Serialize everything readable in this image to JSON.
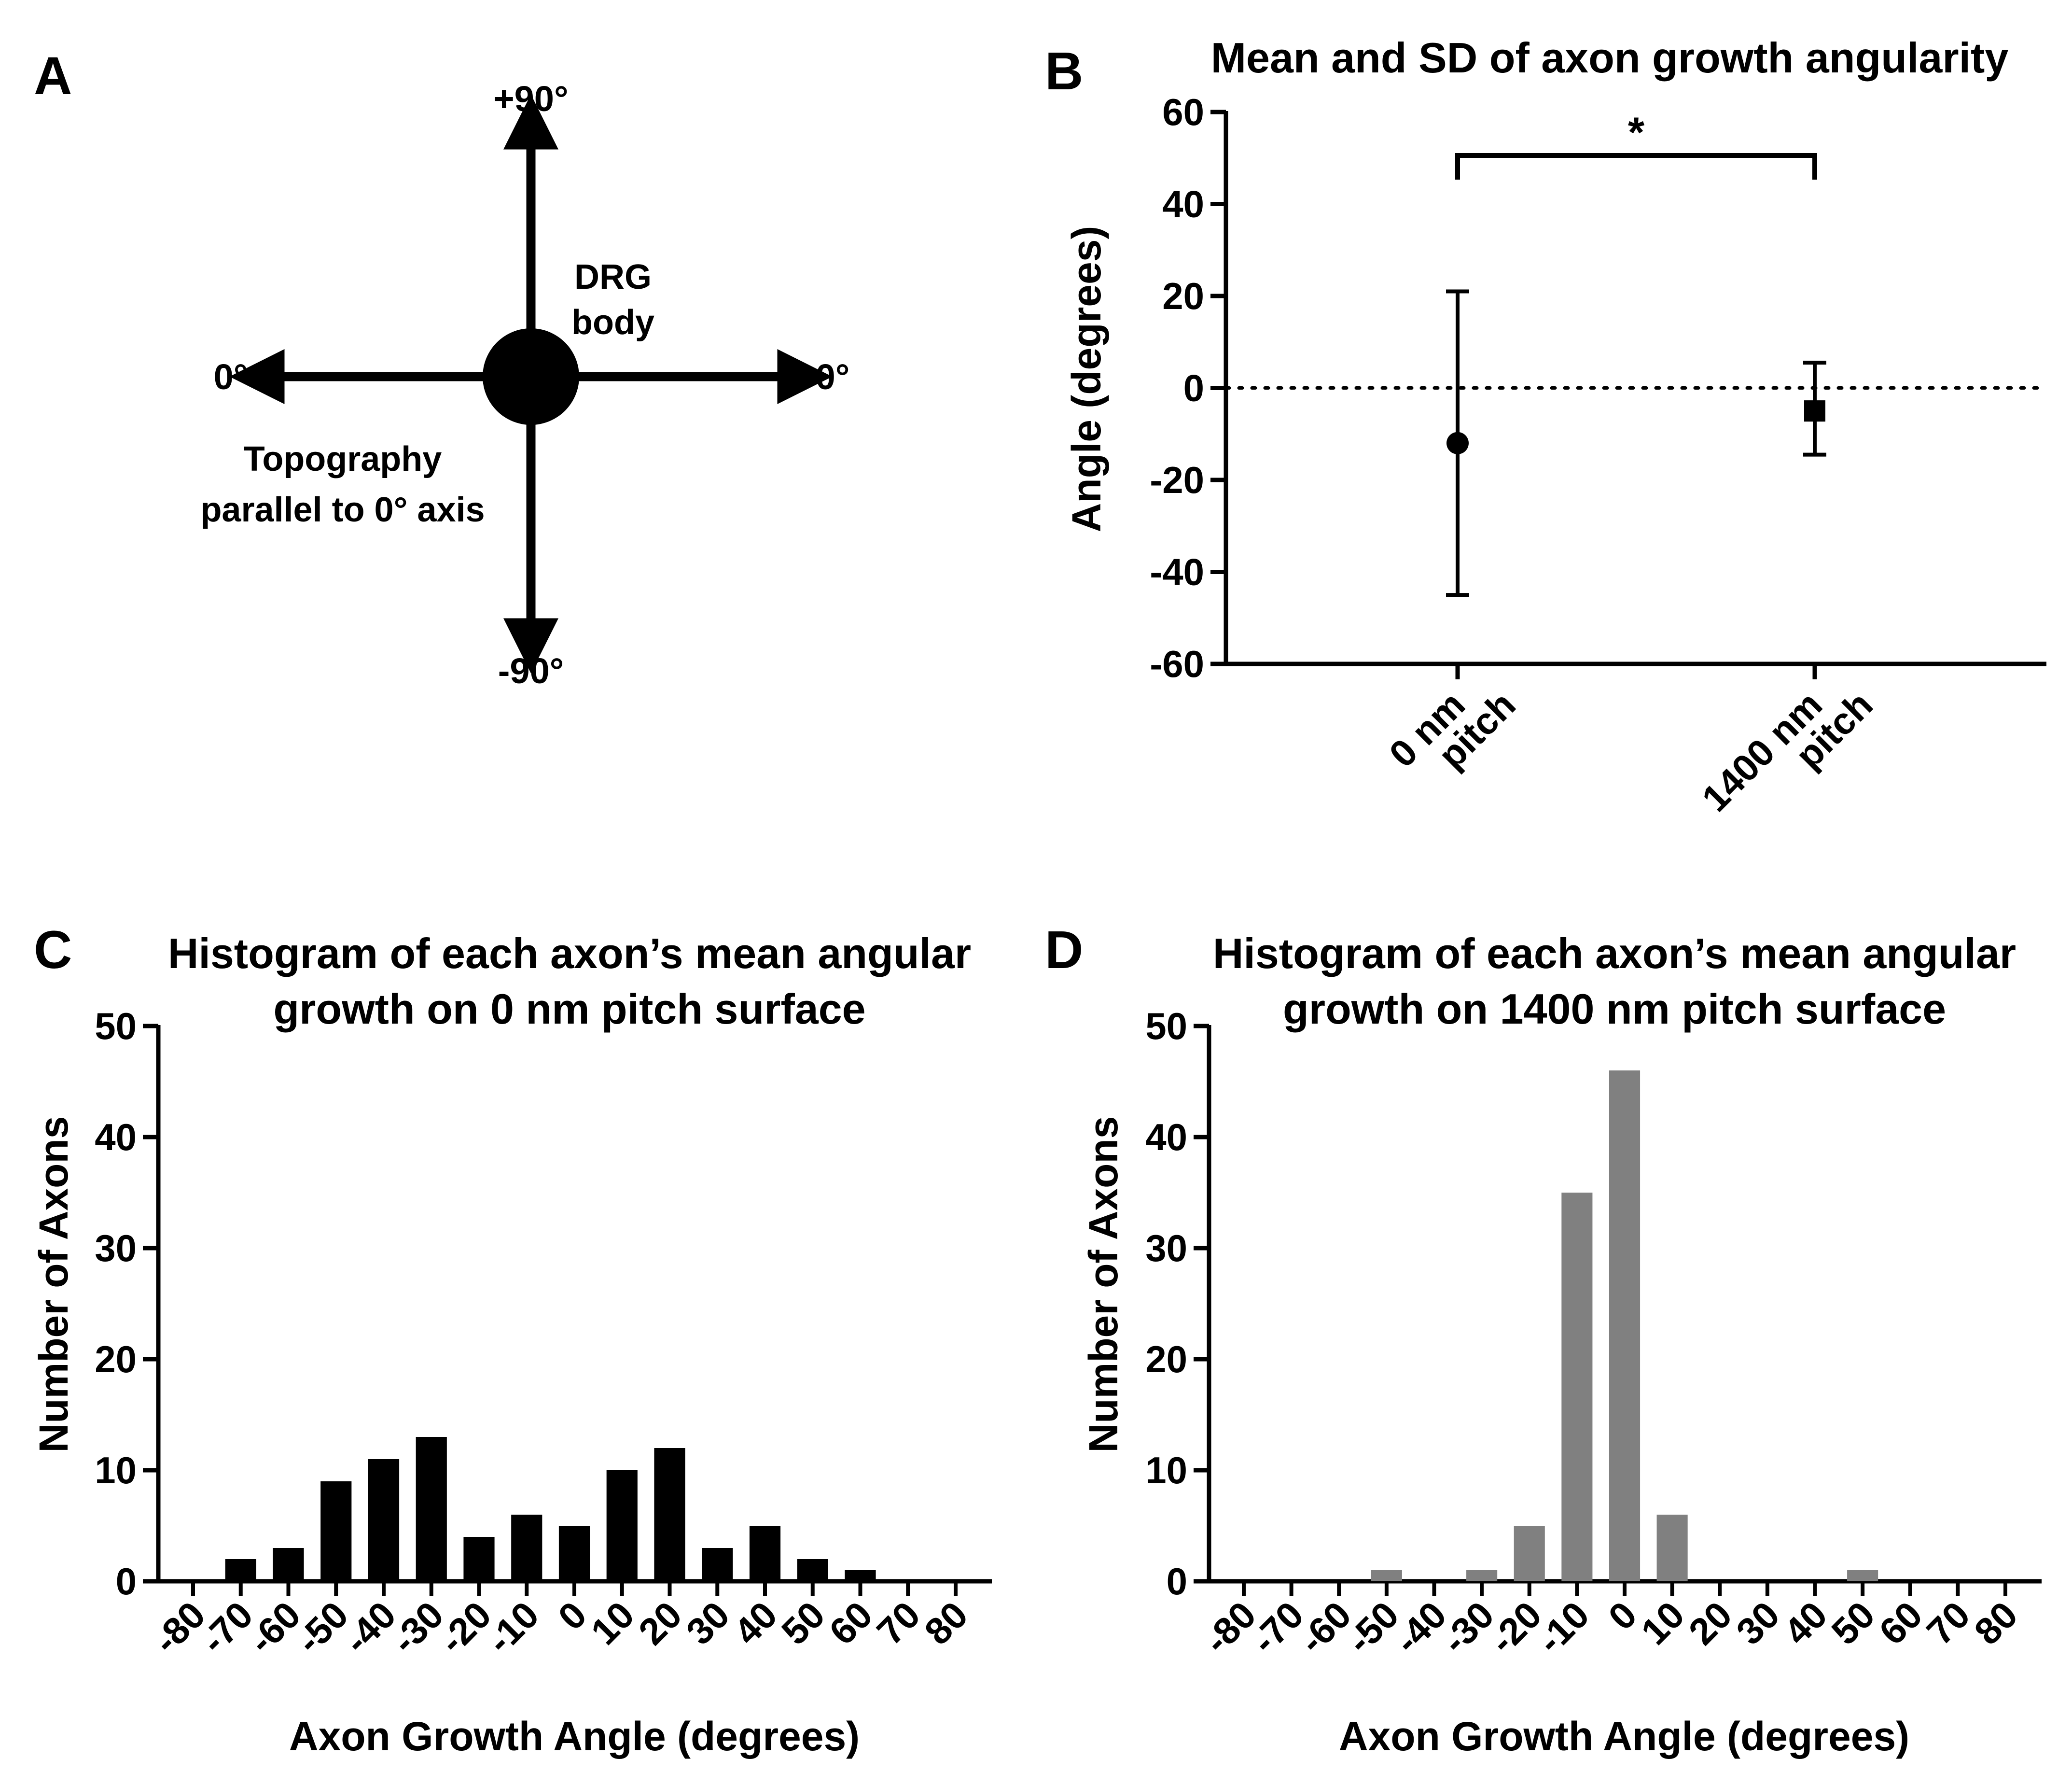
{
  "panels": {
    "A": {
      "letter": "A",
      "top_label": "+90°",
      "bottom_label": "-90°",
      "left_label": "0°",
      "right_label": "0°",
      "body_label_line1": "DRG",
      "body_label_line2": "body",
      "topo_line1": "Topography",
      "topo_line2": "parallel to 0° axis"
    },
    "B": {
      "letter": "B"
    },
    "C": {
      "letter": "C"
    },
    "D": {
      "letter": "D"
    }
  },
  "chart_data": [
    {
      "id": "B",
      "type": "scatter",
      "title": "Mean and SD of axon growth angularity",
      "ylabel": "Angle (degrees)",
      "xlabel": "",
      "ylim": [
        -60,
        60
      ],
      "yticks": [
        60,
        40,
        20,
        0,
        -20,
        -40,
        -60
      ],
      "categories": [
        {
          "line1": "0 nm",
          "line2": "pitch"
        },
        {
          "line1": "1400 nm",
          "line2": "pitch"
        }
      ],
      "points": [
        {
          "mean": -12,
          "upper": 21,
          "lower": -45,
          "marker": "circle"
        },
        {
          "mean": -5,
          "upper": 5.5,
          "lower": -14.5,
          "marker": "square"
        }
      ],
      "reference_line": 0,
      "significance": "*",
      "color": "#000000"
    },
    {
      "id": "C",
      "type": "bar",
      "title_line1": "Histogram of each axon’s mean angular",
      "title_line2": "growth on 0 nm pitch surface",
      "xlabel": "Axon Growth Angle (degrees)",
      "ylabel": "Number of Axons",
      "ylim": [
        0,
        50
      ],
      "yticks": [
        0,
        10,
        20,
        30,
        40,
        50
      ],
      "categories": [
        "-80",
        "-70",
        "-60",
        "-50",
        "-40",
        "-30",
        "-20",
        "-10",
        "0",
        "10",
        "20",
        "30",
        "40",
        "50",
        "60",
        "70",
        "80"
      ],
      "values": [
        0,
        2,
        3,
        9,
        11,
        13,
        4,
        6,
        5,
        10,
        12,
        3,
        5,
        2,
        1,
        0,
        0
      ],
      "color": "#000000"
    },
    {
      "id": "D",
      "type": "bar",
      "title_line1": "Histogram of each axon’s mean angular",
      "title_line2": "growth on 1400 nm pitch surface",
      "xlabel": "Axon Growth Angle (degrees)",
      "ylabel": "Number of Axons",
      "ylim": [
        0,
        50
      ],
      "yticks": [
        0,
        10,
        20,
        30,
        40,
        50
      ],
      "categories": [
        "-80",
        "-70",
        "-60",
        "-50",
        "-40",
        "-30",
        "-20",
        "-10",
        "0",
        "10",
        "20",
        "30",
        "40",
        "50",
        "60",
        "70",
        "80"
      ],
      "values": [
        0,
        0,
        0,
        1,
        0,
        1,
        5,
        35,
        46,
        6,
        0,
        0,
        0,
        1,
        0,
        0,
        0
      ],
      "color": "#808080"
    }
  ]
}
